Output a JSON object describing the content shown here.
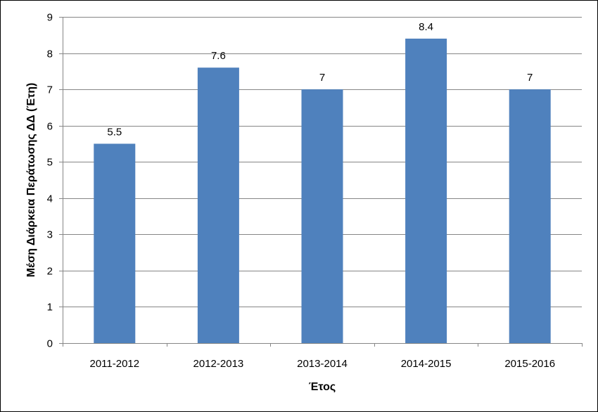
{
  "chart_data": {
    "type": "bar",
    "categories": [
      "2011-2012",
      "2012-2013",
      "2013-2014",
      "2014-2015",
      "2015-2016"
    ],
    "values": [
      5.5,
      7.6,
      7,
      8.4,
      7
    ],
    "data_labels": [
      "5.5",
      "7.6",
      "7",
      "8.4",
      "7"
    ],
    "xlabel": "Έτος",
    "ylabel": "Μέση Διάρκεια Περάτωσης ΔΔ (Έτη)",
    "ylim": [
      0,
      9
    ],
    "yticks": [
      "0",
      "1",
      "2",
      "3",
      "4",
      "5",
      "6",
      "7",
      "8",
      "9"
    ],
    "grid": true,
    "legend": false,
    "colors": {
      "bar": "#4F81BD",
      "grid": "#868686",
      "axis": "#868686"
    }
  }
}
